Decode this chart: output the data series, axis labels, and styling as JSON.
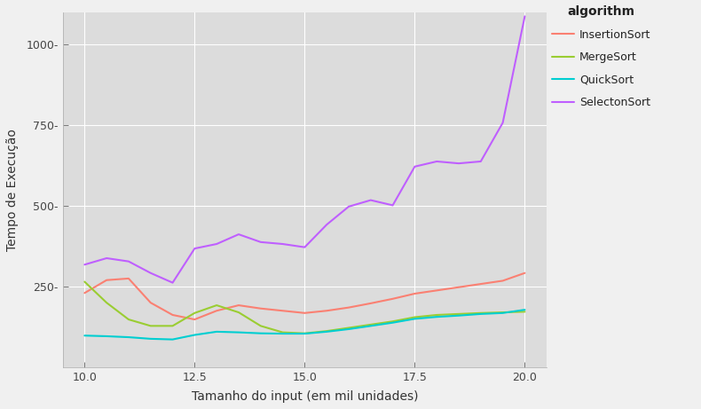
{
  "x": [
    10.0,
    10.5,
    11.0,
    11.5,
    12.0,
    12.5,
    13.0,
    13.5,
    14.0,
    14.5,
    15.0,
    15.5,
    16.0,
    16.5,
    17.0,
    17.5,
    18.0,
    18.5,
    19.0,
    19.5,
    20.0
  ],
  "InsertionSort": [
    230,
    270,
    275,
    200,
    162,
    148,
    175,
    192,
    182,
    175,
    168,
    175,
    185,
    198,
    212,
    228,
    238,
    248,
    258,
    268,
    292
  ],
  "MergeSort": [
    265,
    200,
    148,
    128,
    128,
    168,
    192,
    170,
    128,
    108,
    105,
    112,
    122,
    132,
    142,
    155,
    162,
    165,
    168,
    170,
    172
  ],
  "QuickSort": [
    98,
    96,
    93,
    88,
    86,
    100,
    110,
    108,
    105,
    104,
    104,
    110,
    118,
    128,
    138,
    150,
    156,
    160,
    165,
    168,
    178
  ],
  "SelectonSort": [
    318,
    338,
    328,
    292,
    262,
    368,
    382,
    412,
    388,
    382,
    372,
    442,
    498,
    518,
    502,
    622,
    638,
    632,
    638,
    758,
    1088
  ],
  "colors": {
    "InsertionSort": "#FA8072",
    "MergeSort": "#9ACD32",
    "QuickSort": "#00CED1",
    "SelectonSort": "#BF5FFF"
  },
  "xlabel": "Tamanho do input (em mil unidades)",
  "ylabel": "Tempo de Execução",
  "legend_title": "algorithm",
  "plot_bg": "#DCDCDC",
  "fig_bg": "#F0F0F0",
  "grid_color": "#FFFFFF",
  "xlim": [
    9.5,
    20.5
  ],
  "ylim": [
    0,
    1100
  ],
  "yticks": [
    250,
    500,
    750,
    1000
  ],
  "xticks": [
    10.0,
    12.5,
    15.0,
    17.5,
    20.0
  ]
}
